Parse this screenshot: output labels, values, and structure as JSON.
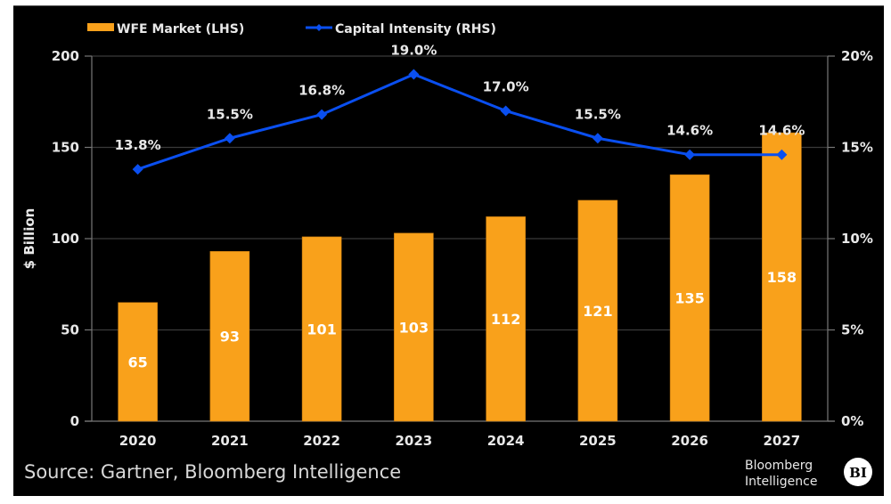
{
  "chart_data": {
    "type": "bar",
    "title": "",
    "categories": [
      "2020",
      "2021",
      "2022",
      "2023",
      "2024",
      "2025",
      "2026",
      "2027"
    ],
    "series": [
      {
        "name": "WFE Market (LHS)",
        "type": "bar",
        "axis": "left",
        "color": "#f9a11b",
        "values": [
          65,
          93,
          101,
          103,
          112,
          121,
          135,
          158
        ],
        "labels": [
          "65",
          "93",
          "101",
          "103",
          "112",
          "121",
          "135",
          "158"
        ]
      },
      {
        "name": "Capital Intensity (RHS)",
        "type": "line",
        "axis": "right",
        "color": "#0a4ff0",
        "marker": "diamond",
        "values": [
          13.8,
          15.5,
          16.8,
          19.0,
          17.0,
          15.5,
          14.6,
          14.6
        ],
        "labels": [
          "13.8%",
          "15.5%",
          "16.8%",
          "19.0%",
          "17.0%",
          "15.5%",
          "14.6%",
          "14.6%"
        ]
      }
    ],
    "xlabel": "",
    "ylabel": "$ Billion",
    "ylim": [
      0,
      200
    ],
    "yticks": [
      "0",
      "50",
      "100",
      "150",
      "200"
    ],
    "y2lim": [
      0,
      20
    ],
    "y2ticks": [
      "0%",
      "5%",
      "10%",
      "15%",
      "20%"
    ],
    "grid": true,
    "legend_position": "top-left",
    "background": "#000000"
  },
  "footer": {
    "source": "Source: Gartner, Bloomberg Intelligence",
    "brand_line1": "Bloomberg",
    "brand_line2": "Intelligence",
    "logo": "BI"
  }
}
